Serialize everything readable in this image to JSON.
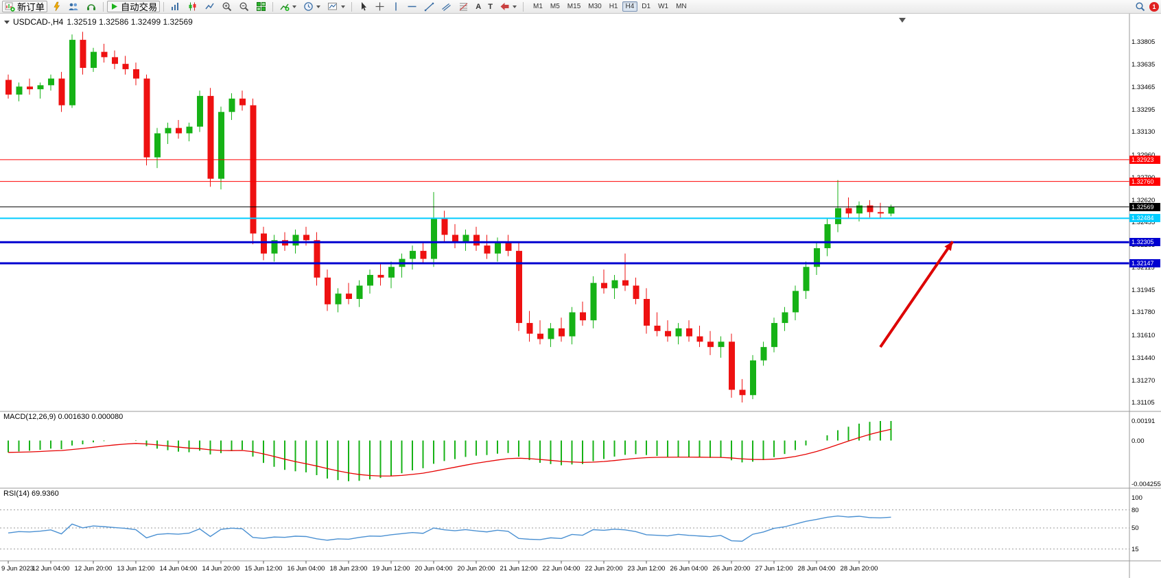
{
  "toolbar": {
    "new_order_label": "新订单",
    "autotrading_label": "自动交易",
    "notification_count": "1",
    "timeframes": [
      {
        "label": "M1",
        "active": false
      },
      {
        "label": "M5",
        "active": false
      },
      {
        "label": "M15",
        "active": false
      },
      {
        "label": "M30",
        "active": false
      },
      {
        "label": "H1",
        "active": false
      },
      {
        "label": "H4",
        "active": true
      },
      {
        "label": "D1",
        "active": false
      },
      {
        "label": "W1",
        "active": false
      },
      {
        "label": "MN",
        "active": false
      }
    ],
    "icons": [
      "new-order",
      "lightning",
      "profiles",
      "headset",
      "autotrading-play",
      "bar-chart",
      "candlestick-chart",
      "line-chart",
      "zoom-in",
      "zoom-out",
      "tile-windows",
      "add-indicator",
      "clock",
      "templates",
      "cursor",
      "crosshair",
      "vertical-line",
      "horizontal-line",
      "trendline",
      "equidistant-channel",
      "fibonacci",
      "text",
      "label",
      "arrow-shapes",
      "search",
      "notification"
    ]
  },
  "chart": {
    "symbol_period": "USDCAD-,H4",
    "ohlc_text": "1.32519 1.32586 1.32499 1.32569"
  },
  "chart_data": {
    "type": "candlestick",
    "symbol": "USDCAD-",
    "timeframe": "H4",
    "current": {
      "open": 1.32519,
      "high": 1.32586,
      "low": 1.32499,
      "close": 1.32569
    },
    "colors": {
      "up": "#16b216",
      "down": "#ee1111"
    },
    "candles": [
      [
        1.3352,
        1.3356,
        1.3338,
        1.3341
      ],
      [
        1.3341,
        1.335,
        1.3336,
        1.3347
      ],
      [
        1.3347,
        1.3353,
        1.3341,
        1.3345
      ],
      [
        1.3345,
        1.335,
        1.3338,
        1.3348
      ],
      [
        1.3348,
        1.3356,
        1.3344,
        1.3353
      ],
      [
        1.3353,
        1.3358,
        1.3328,
        1.3333
      ],
      [
        1.3333,
        1.3386,
        1.3331,
        1.3382
      ],
      [
        1.3382,
        1.3388,
        1.3356,
        1.3361
      ],
      [
        1.3361,
        1.3376,
        1.3358,
        1.3373
      ],
      [
        1.3373,
        1.3379,
        1.3365,
        1.3369
      ],
      [
        1.3369,
        1.3374,
        1.336,
        1.3364
      ],
      [
        1.3364,
        1.337,
        1.3356,
        1.336
      ],
      [
        1.336,
        1.3365,
        1.3348,
        1.3353
      ],
      [
        1.3353,
        1.3356,
        1.3288,
        1.3294
      ],
      [
        1.3294,
        1.3316,
        1.3286,
        1.3312
      ],
      [
        1.3312,
        1.332,
        1.3304,
        1.3316
      ],
      [
        1.3316,
        1.3322,
        1.3308,
        1.3312
      ],
      [
        1.3312,
        1.332,
        1.3306,
        1.3317
      ],
      [
        1.3317,
        1.3344,
        1.3313,
        1.334
      ],
      [
        1.334,
        1.3346,
        1.3272,
        1.3278
      ],
      [
        1.3278,
        1.3332,
        1.327,
        1.3328
      ],
      [
        1.3328,
        1.3342,
        1.3322,
        1.3338
      ],
      [
        1.3338,
        1.3344,
        1.3329,
        1.3333
      ],
      [
        1.3333,
        1.3338,
        1.3229,
        1.3237
      ],
      [
        1.3237,
        1.3242,
        1.3217,
        1.3222
      ],
      [
        1.3222,
        1.3236,
        1.3216,
        1.3232
      ],
      [
        1.3232,
        1.3238,
        1.3224,
        1.3228
      ],
      [
        1.3228,
        1.324,
        1.3222,
        1.3236
      ],
      [
        1.3236,
        1.3242,
        1.3228,
        1.3232
      ],
      [
        1.3232,
        1.3238,
        1.3198,
        1.3204
      ],
      [
        1.3204,
        1.321,
        1.3179,
        1.3184
      ],
      [
        1.3184,
        1.3196,
        1.3178,
        1.3192
      ],
      [
        1.3192,
        1.32,
        1.3184,
        1.3188
      ],
      [
        1.3188,
        1.3202,
        1.3182,
        1.3198
      ],
      [
        1.3198,
        1.321,
        1.3192,
        1.3206
      ],
      [
        1.3206,
        1.3214,
        1.3198,
        1.3204
      ],
      [
        1.3204,
        1.3216,
        1.3196,
        1.3212
      ],
      [
        1.3212,
        1.3222,
        1.3204,
        1.3218
      ],
      [
        1.3218,
        1.3228,
        1.321,
        1.3224
      ],
      [
        1.3224,
        1.323,
        1.3214,
        1.3218
      ],
      [
        1.3218,
        1.3268,
        1.3212,
        1.3248
      ],
      [
        1.3248,
        1.3254,
        1.323,
        1.3236
      ],
      [
        1.3236,
        1.3244,
        1.3226,
        1.323
      ],
      [
        1.323,
        1.324,
        1.3224,
        1.3236
      ],
      [
        1.3236,
        1.3242,
        1.3224,
        1.3228
      ],
      [
        1.3228,
        1.3236,
        1.3218,
        1.3222
      ],
      [
        1.3222,
        1.3234,
        1.3216,
        1.323
      ],
      [
        1.323,
        1.3236,
        1.322,
        1.3224
      ],
      [
        1.3224,
        1.323,
        1.3164,
        1.317
      ],
      [
        1.317,
        1.3179,
        1.3156,
        1.3162
      ],
      [
        1.3162,
        1.3172,
        1.3154,
        1.3158
      ],
      [
        1.3158,
        1.317,
        1.3152,
        1.3166
      ],
      [
        1.3166,
        1.3174,
        1.3156,
        1.316
      ],
      [
        1.316,
        1.3182,
        1.3154,
        1.3178
      ],
      [
        1.3178,
        1.3186,
        1.3168,
        1.3172
      ],
      [
        1.3172,
        1.3205,
        1.3166,
        1.32
      ],
      [
        1.32,
        1.321,
        1.3192,
        1.3196
      ],
      [
        1.3196,
        1.3206,
        1.3188,
        1.3202
      ],
      [
        1.3202,
        1.3222,
        1.3194,
        1.3198
      ],
      [
        1.3198,
        1.3204,
        1.3184,
        1.3188
      ],
      [
        1.3188,
        1.3196,
        1.3162,
        1.3168
      ],
      [
        1.3168,
        1.3178,
        1.316,
        1.3164
      ],
      [
        1.3164,
        1.3172,
        1.3156,
        1.316
      ],
      [
        1.316,
        1.317,
        1.3154,
        1.3166
      ],
      [
        1.3166,
        1.3172,
        1.3156,
        1.316
      ],
      [
        1.316,
        1.3168,
        1.3152,
        1.3156
      ],
      [
        1.3156,
        1.3164,
        1.3146,
        1.3152
      ],
      [
        1.3152,
        1.316,
        1.3144,
        1.3156
      ],
      [
        1.3156,
        1.3162,
        1.3114,
        1.312
      ],
      [
        1.312,
        1.3128,
        1.31105,
        1.3116
      ],
      [
        1.3116,
        1.3146,
        1.3113,
        1.3142
      ],
      [
        1.3142,
        1.3156,
        1.3138,
        1.3152
      ],
      [
        1.3152,
        1.3174,
        1.3148,
        1.317
      ],
      [
        1.317,
        1.3182,
        1.3164,
        1.3178
      ],
      [
        1.3178,
        1.3198,
        1.3172,
        1.3194
      ],
      [
        1.3194,
        1.3216,
        1.3188,
        1.3212
      ],
      [
        1.3212,
        1.323,
        1.3206,
        1.3226
      ],
      [
        1.3226,
        1.3248,
        1.322,
        1.3244
      ],
      [
        1.3244,
        1.3277,
        1.3238,
        1.3256
      ],
      [
        1.3256,
        1.3264,
        1.3248,
        1.3252
      ],
      [
        1.3252,
        1.3261,
        1.3246,
        1.3258
      ],
      [
        1.3258,
        1.3262,
        1.3249,
        1.3253
      ],
      [
        1.3253,
        1.326,
        1.3248,
        1.3252
      ],
      [
        1.32519,
        1.32586,
        1.32499,
        1.32569
      ]
    ],
    "price_axis_ticks": [
      "1.33805",
      "1.33635",
      "1.33465",
      "1.33295",
      "1.33130",
      "1.32960",
      "1.32790",
      "1.32620",
      "1.32455",
      "1.32285",
      "1.32115",
      "1.31945",
      "1.31780",
      "1.31610",
      "1.31440",
      "1.31270",
      "1.31105"
    ],
    "time_axis_labels": [
      "9 Jun 2023",
      "12 Jun 04:00",
      "12 Jun 20:00",
      "13 Jun 12:00",
      "14 Jun 04:00",
      "14 Jun 20:00",
      "15 Jun 12:00",
      "16 Jun 04:00",
      "18 Jun 23:00",
      "19 Jun 12:00",
      "20 Jun 04:00",
      "20 Jun 20:00",
      "21 Jun 12:00",
      "22 Jun 04:00",
      "22 Jun 20:00",
      "23 Jun 12:00",
      "26 Jun 04:00",
      "26 Jun 20:00",
      "27 Jun 12:00",
      "28 Jun 04:00",
      "28 Jun 20:00"
    ],
    "label_every_n_candles": 4,
    "levels": [
      {
        "price": 1.32923,
        "label": "1.32923",
        "color": "#ff0000",
        "width": 1,
        "role": "resistance"
      },
      {
        "price": 1.3276,
        "label": "1.32760",
        "color": "#ff0000",
        "width": 1,
        "role": "resistance"
      },
      {
        "price": 1.32569,
        "label": "1.32569",
        "color": "#000000",
        "width": 1,
        "role": "current-price"
      },
      {
        "price": 1.32484,
        "label": "1.32484",
        "color": "#00ccff",
        "width": 2,
        "role": "level"
      },
      {
        "price": 1.32305,
        "label": "1.32305",
        "color": "#0000d0",
        "width": 3,
        "role": "support"
      },
      {
        "price": 1.32147,
        "label": "1.32147",
        "color": "#0000d0",
        "width": 3,
        "role": "support"
      }
    ],
    "objects": [
      {
        "type": "arrow",
        "color": "#dd0000",
        "width": 4,
        "from_bar": 82,
        "from_price": 1.3152,
        "to_bar": 88.8,
        "to_price": 1.3231
      }
    ],
    "macd": {
      "title": "MACD(12,26,9) 0.001630 0.000080",
      "fast": 12,
      "slow": 26,
      "signal_period": 9,
      "value": "0.001630",
      "signal_value": "0.000080",
      "histogram_color": "#16b216",
      "line_color": "#e60000",
      "scale": [
        {
          "label": "0.00191",
          "value": 0.00191
        },
        {
          "label": "0.00",
          "value": 0
        },
        {
          "label": "-0.004255",
          "value": -0.004255
        }
      ]
    },
    "rsi": {
      "title": "RSI(14) 69.9360",
      "period": 14,
      "value": "69.9360",
      "line_color": "#4a90d2",
      "level_lines": [
        80,
        50,
        15
      ],
      "scale": [
        {
          "label": "100",
          "value": 100
        },
        {
          "label": "80",
          "value": 80
        },
        {
          "label": "50",
          "value": 50
        },
        {
          "label": "15",
          "value": 15
        }
      ]
    }
  }
}
